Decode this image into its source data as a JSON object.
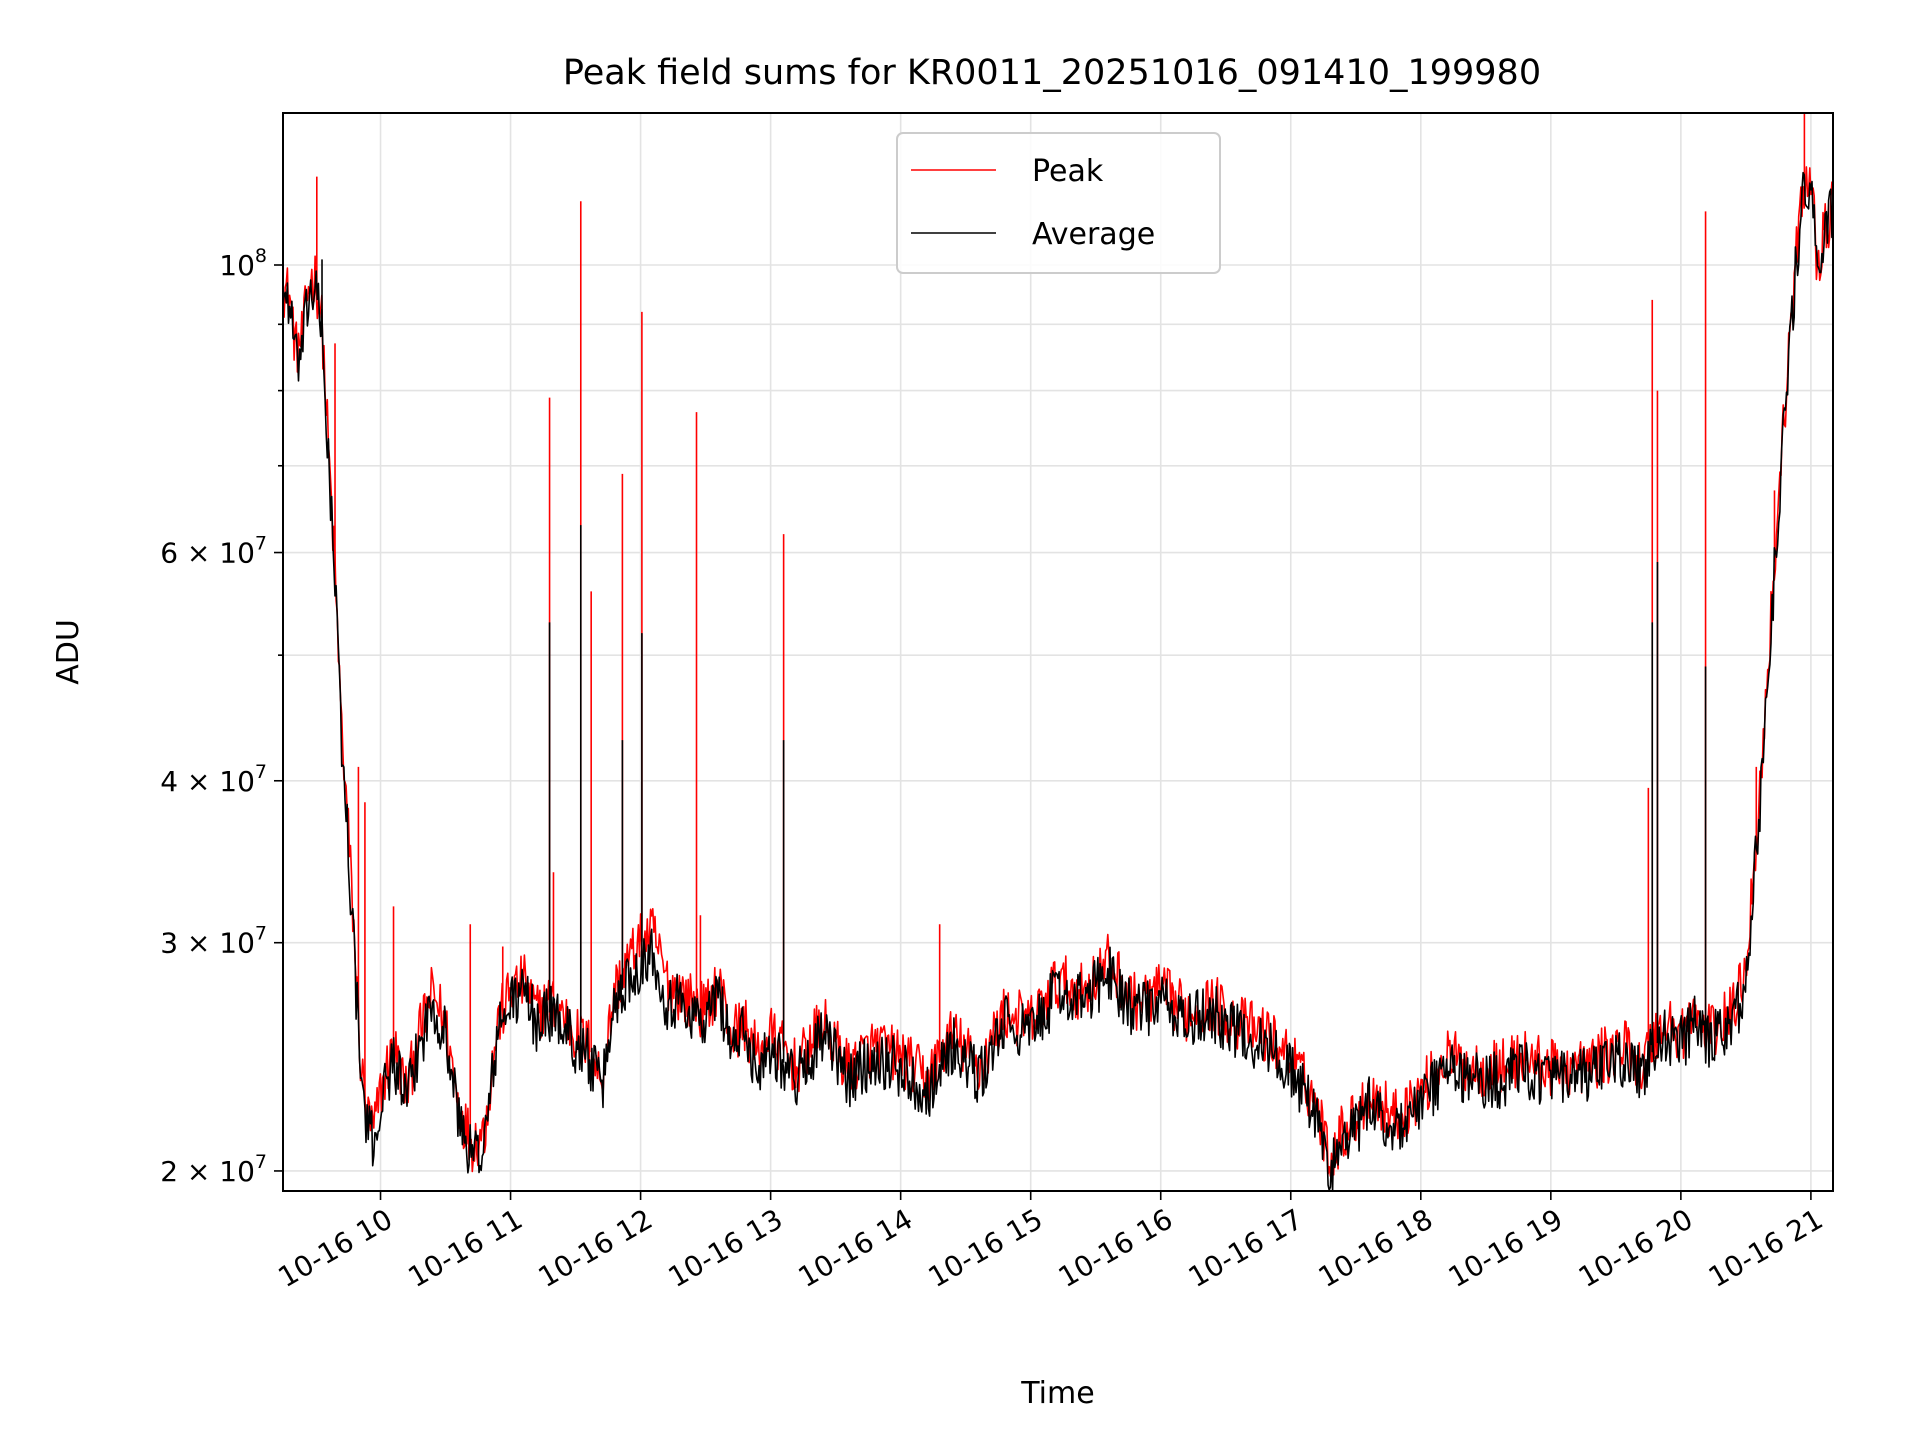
{
  "chart_data": {
    "type": "line",
    "title": "Peak field sums for KR0011_20251016_091410_199980",
    "xlabel": "Time",
    "ylabel": "ADU",
    "x_unit": "hours since 2025-10-16 00:00",
    "xlim": [
      9.25,
      21.17
    ],
    "ylim": [
      19300000,
      131000000
    ],
    "y_scale": "log",
    "grid": true,
    "legend_position": "upper-center",
    "x_ticks": [
      {
        "value": 10,
        "label": "10-16 10"
      },
      {
        "value": 11,
        "label": "10-16 11"
      },
      {
        "value": 12,
        "label": "10-16 12"
      },
      {
        "value": 13,
        "label": "10-16 13"
      },
      {
        "value": 14,
        "label": "10-16 14"
      },
      {
        "value": 15,
        "label": "10-16 15"
      },
      {
        "value": 16,
        "label": "10-16 16"
      },
      {
        "value": 17,
        "label": "10-16 17"
      },
      {
        "value": 18,
        "label": "10-16 18"
      },
      {
        "value": 19,
        "label": "10-16 19"
      },
      {
        "value": 20,
        "label": "10-16 20"
      },
      {
        "value": 21,
        "label": "10-16 21"
      }
    ],
    "y_ticks": [
      {
        "value": 20000000,
        "mantissa": "2 × 10",
        "exp": "7"
      },
      {
        "value": 30000000,
        "mantissa": "3 × 10",
        "exp": "7"
      },
      {
        "value": 40000000,
        "mantissa": "4 × 10",
        "exp": "7"
      },
      {
        "value": 60000000,
        "mantissa": "6 × 10",
        "exp": "7"
      },
      {
        "value": 100000000,
        "mantissa": "10",
        "exp": "8"
      }
    ],
    "y_minor_ticks": [
      50000000,
      70000000,
      80000000,
      90000000
    ],
    "series": [
      {
        "name": "Peak",
        "color": "#ff0000",
        "x": [
          9.25,
          9.3,
          9.35,
          9.4,
          9.45,
          9.5,
          9.55,
          9.6,
          9.65,
          9.7,
          9.75,
          9.8,
          9.85,
          9.9,
          9.95,
          10.0,
          10.1,
          10.2,
          10.3,
          10.4,
          10.5,
          10.6,
          10.7,
          10.8,
          10.9,
          11.0,
          11.1,
          11.2,
          11.3,
          11.4,
          11.5,
          11.6,
          11.7,
          11.8,
          11.9,
          12.0,
          12.1,
          12.2,
          12.3,
          12.4,
          12.5,
          12.6,
          12.7,
          12.8,
          12.9,
          13.0,
          13.2,
          13.4,
          13.6,
          13.8,
          14.0,
          14.2,
          14.4,
          14.6,
          14.8,
          15.0,
          15.2,
          15.4,
          15.6,
          15.8,
          16.0,
          16.2,
          16.4,
          16.6,
          16.8,
          17.0,
          17.2,
          17.3,
          17.4,
          17.5,
          17.6,
          17.8,
          18.0,
          18.2,
          18.4,
          18.6,
          18.8,
          19.0,
          19.2,
          19.4,
          19.6,
          19.7,
          19.8,
          19.9,
          20.0,
          20.1,
          20.2,
          20.3,
          20.4,
          20.5,
          20.6,
          20.7,
          20.8,
          20.9,
          20.95,
          21.0,
          21.05,
          21.1,
          21.15
        ],
        "y": [
          96000000,
          95000000,
          86000000,
          88000000,
          97000000,
          98000000,
          90000000,
          72000000,
          58000000,
          44000000,
          37000000,
          30000000,
          24000000,
          22000000,
          21500000,
          23000000,
          25000000,
          23000000,
          25500000,
          27500000,
          26000000,
          22500000,
          21000000,
          21500000,
          26000000,
          27500000,
          28000000,
          26500000,
          27000000,
          26500000,
          25500000,
          25000000,
          23500000,
          27500000,
          29000000,
          30000000,
          30500000,
          28000000,
          27500000,
          27000000,
          26500000,
          28000000,
          25500000,
          26000000,
          24500000,
          25500000,
          24000000,
          26000000,
          24000000,
          25000000,
          24500000,
          23500000,
          25500000,
          24000000,
          26500000,
          26000000,
          28000000,
          27500000,
          29000000,
          27000000,
          27500000,
          26500000,
          27000000,
          26000000,
          25500000,
          24500000,
          22500000,
          20500000,
          21500000,
          22000000,
          23000000,
          22000000,
          23000000,
          24500000,
          24000000,
          24000000,
          24500000,
          24000000,
          24000000,
          24500000,
          25000000,
          24000000,
          25500000,
          26000000,
          25500000,
          26500000,
          25500000,
          26000000,
          26500000,
          29000000,
          38000000,
          55000000,
          78000000,
          105000000,
          116000000,
          118000000,
          100000000,
          105000000,
          110000000
        ],
        "spikes": [
          {
            "x": 9.51,
            "y": 117000000
          },
          {
            "x": 9.65,
            "y": 87000000
          },
          {
            "x": 9.83,
            "y": 41000000
          },
          {
            "x": 9.88,
            "y": 38500000
          },
          {
            "x": 10.1,
            "y": 32000000
          },
          {
            "x": 10.69,
            "y": 31000000
          },
          {
            "x": 10.94,
            "y": 29800000
          },
          {
            "x": 11.3,
            "y": 79000000
          },
          {
            "x": 11.33,
            "y": 34000000
          },
          {
            "x": 11.54,
            "y": 112000000
          },
          {
            "x": 11.62,
            "y": 56000000
          },
          {
            "x": 11.86,
            "y": 69000000
          },
          {
            "x": 12.01,
            "y": 92000000
          },
          {
            "x": 12.43,
            "y": 77000000
          },
          {
            "x": 12.46,
            "y": 31500000
          },
          {
            "x": 13.1,
            "y": 62000000
          },
          {
            "x": 14.3,
            "y": 31000000
          },
          {
            "x": 19.75,
            "y": 39500000
          },
          {
            "x": 19.78,
            "y": 94000000
          },
          {
            "x": 19.82,
            "y": 80000000
          },
          {
            "x": 20.19,
            "y": 110000000
          },
          {
            "x": 20.58,
            "y": 41000000
          },
          {
            "x": 20.72,
            "y": 67000000
          },
          {
            "x": 20.95,
            "y": 131000000
          }
        ]
      },
      {
        "name": "Average",
        "color": "#000000",
        "x": [
          9.25,
          9.3,
          9.35,
          9.4,
          9.45,
          9.5,
          9.55,
          9.6,
          9.65,
          9.7,
          9.75,
          9.8,
          9.85,
          9.9,
          9.95,
          10.0,
          10.1,
          10.2,
          10.3,
          10.4,
          10.5,
          10.6,
          10.7,
          10.8,
          10.9,
          11.0,
          11.1,
          11.2,
          11.3,
          11.4,
          11.5,
          11.6,
          11.7,
          11.8,
          11.9,
          12.0,
          12.1,
          12.2,
          12.3,
          12.4,
          12.5,
          12.6,
          12.7,
          12.8,
          12.9,
          13.0,
          13.2,
          13.4,
          13.6,
          13.8,
          14.0,
          14.2,
          14.4,
          14.6,
          14.8,
          15.0,
          15.2,
          15.4,
          15.6,
          15.8,
          16.0,
          16.2,
          16.4,
          16.6,
          16.8,
          17.0,
          17.2,
          17.3,
          17.4,
          17.5,
          17.6,
          17.8,
          18.0,
          18.2,
          18.4,
          18.6,
          18.8,
          19.0,
          19.2,
          19.4,
          19.6,
          19.7,
          19.8,
          19.9,
          20.0,
          20.1,
          20.2,
          20.3,
          20.4,
          20.5,
          20.6,
          20.7,
          20.8,
          20.9,
          20.95,
          21.0,
          21.05,
          21.1,
          21.15
        ],
        "y": [
          95000000,
          94000000,
          84000000,
          86000000,
          95000000,
          96000000,
          88000000,
          71000000,
          57000000,
          43000000,
          36000000,
          29000000,
          23500000,
          21500000,
          21000000,
          22500000,
          24500000,
          22500000,
          25000000,
          27000000,
          25500000,
          22000000,
          20500000,
          21000000,
          25500000,
          27000000,
          27500000,
          26000000,
          26500000,
          26000000,
          25000000,
          24500000,
          23000000,
          27000000,
          28000000,
          29000000,
          29500000,
          27000000,
          27000000,
          26500000,
          26000000,
          27500000,
          25000000,
          25500000,
          24000000,
          25000000,
          23500000,
          25500000,
          23500000,
          24500000,
          24000000,
          23000000,
          25000000,
          23500000,
          26000000,
          25500000,
          27500000,
          27000000,
          28500000,
          26500000,
          27000000,
          26000000,
          26500000,
          25500000,
          25000000,
          24000000,
          22000000,
          20000000,
          21000000,
          21500000,
          22500000,
          21500000,
          22500000,
          24000000,
          23500000,
          23500000,
          24000000,
          23500000,
          23500000,
          24000000,
          24500000,
          23500000,
          25000000,
          25500000,
          25000000,
          26000000,
          25000000,
          25500000,
          26000000,
          28000000,
          37000000,
          54000000,
          77000000,
          104000000,
          114000000,
          116000000,
          99000000,
          104000000,
          109000000
        ],
        "spikes": [
          {
            "x": 9.55,
            "y": 101000000
          },
          {
            "x": 11.3,
            "y": 53000000
          },
          {
            "x": 11.54,
            "y": 63000000
          },
          {
            "x": 11.86,
            "y": 43000000
          },
          {
            "x": 12.01,
            "y": 52000000
          },
          {
            "x": 13.1,
            "y": 43000000
          },
          {
            "x": 19.78,
            "y": 53000000
          },
          {
            "x": 19.82,
            "y": 59000000
          },
          {
            "x": 20.19,
            "y": 49000000
          }
        ]
      }
    ]
  }
}
